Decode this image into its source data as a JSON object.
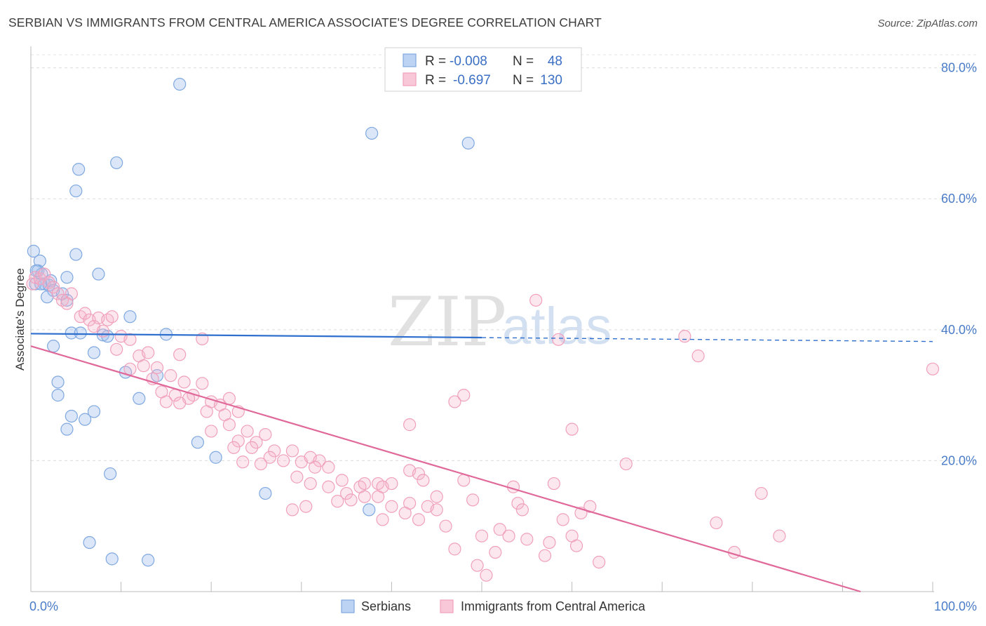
{
  "title": "SERBIAN VS IMMIGRANTS FROM CENTRAL AMERICA ASSOCIATE'S DEGREE CORRELATION CHART",
  "source": "Source: ZipAtlas.com",
  "watermark": {
    "zip": "ZIP",
    "atlas": "atlas"
  },
  "chart_data": {
    "type": "scatter",
    "xlabel": "",
    "ylabel": "Associate's Degree",
    "xlim": [
      0,
      100
    ],
    "ylim": [
      0,
      82
    ],
    "x_tick_labels": [
      {
        "value": 0,
        "label": "0.0%"
      },
      {
        "value": 100,
        "label": "100.0%"
      }
    ],
    "y_tick_labels": [
      {
        "value": 20,
        "label": "20.0%"
      },
      {
        "value": 40,
        "label": "40.0%"
      },
      {
        "value": 60,
        "label": "60.0%"
      },
      {
        "value": 80,
        "label": "80.0%"
      }
    ],
    "x_minor_ticks": [
      10,
      20,
      30,
      40,
      50,
      60,
      70,
      80,
      90,
      100
    ],
    "grid": "horizontal dashed",
    "legend_position": "top-center",
    "colors": {
      "serbians": "#7fa8e0",
      "serbians_line": "#2f6fce",
      "immigrants": "#f0a0bc",
      "immigrants_line": "#e0699a",
      "tick": "#4a7cc7"
    },
    "stats": [
      {
        "r_label": "R =",
        "r": "-0.008",
        "n_label": "N =",
        "n": "48"
      },
      {
        "r_label": "R =",
        "r": "-0.697",
        "n_label": "N =",
        "n": "130"
      }
    ],
    "series": [
      {
        "name": "Serbians",
        "trend": {
          "x": [
            0,
            50
          ],
          "y": [
            39.4,
            38.8
          ],
          "dashed_to_x": 100,
          "dashed_y_end": 38.2
        },
        "points": [
          [
            0.3,
            52
          ],
          [
            1,
            50.5
          ],
          [
            0.8,
            49
          ],
          [
            1.2,
            48.5
          ],
          [
            1.5,
            47
          ],
          [
            2,
            46.8
          ],
          [
            2.2,
            47.5
          ],
          [
            2.5,
            46
          ],
          [
            3.5,
            45.5
          ],
          [
            1.8,
            45
          ],
          [
            4,
            44.5
          ],
          [
            4,
            48
          ],
          [
            5,
            51.5
          ],
          [
            7.5,
            48.5
          ],
          [
            4.5,
            39.5
          ],
          [
            5.5,
            39.5
          ],
          [
            8,
            39.2
          ],
          [
            8.5,
            39
          ],
          [
            11,
            42
          ],
          [
            15,
            39.3
          ],
          [
            2.5,
            37.5
          ],
          [
            7,
            36.5
          ],
          [
            10.5,
            33.5
          ],
          [
            14,
            33
          ],
          [
            3,
            32
          ],
          [
            3,
            30
          ],
          [
            12,
            29.5
          ],
          [
            4.5,
            26.8
          ],
          [
            7,
            27.5
          ],
          [
            6,
            26.3
          ],
          [
            4,
            24.8
          ],
          [
            18.5,
            22.8
          ],
          [
            20.5,
            20.5
          ],
          [
            8.8,
            18
          ],
          [
            26,
            15
          ],
          [
            37.5,
            12.5
          ],
          [
            6.5,
            7.5
          ],
          [
            9,
            5
          ],
          [
            13,
            4.8
          ],
          [
            16.5,
            77.5
          ],
          [
            37.8,
            70
          ],
          [
            48.5,
            68.5
          ],
          [
            9.5,
            65.5
          ],
          [
            5.3,
            64.5
          ],
          [
            5,
            61.2
          ],
          [
            0.5,
            47
          ],
          [
            1.1,
            47
          ],
          [
            0.6,
            49
          ]
        ]
      },
      {
        "name": "Immigrants from Central America",
        "trend": {
          "x": [
            0,
            92
          ],
          "y": [
            37.5,
            0
          ]
        },
        "points": [
          [
            0.2,
            47
          ],
          [
            0.5,
            48
          ],
          [
            1,
            47.8
          ],
          [
            1.5,
            48.5
          ],
          [
            2,
            47.2
          ],
          [
            2.5,
            46.5
          ],
          [
            3,
            45.5
          ],
          [
            4.5,
            45.5
          ],
          [
            3.5,
            44.5
          ],
          [
            4,
            44
          ],
          [
            5.5,
            42
          ],
          [
            6,
            42.5
          ],
          [
            6.5,
            41.5
          ],
          [
            7.5,
            41.8
          ],
          [
            8.5,
            41.5
          ],
          [
            9,
            42
          ],
          [
            7,
            40.5
          ],
          [
            8,
            39.8
          ],
          [
            10,
            39
          ],
          [
            11,
            38.5
          ],
          [
            19,
            38.6
          ],
          [
            9.5,
            37
          ],
          [
            12,
            36
          ],
          [
            13,
            36.5
          ],
          [
            16.5,
            36.2
          ],
          [
            12.5,
            34.5
          ],
          [
            14,
            34.2
          ],
          [
            11,
            34
          ],
          [
            13.5,
            32.5
          ],
          [
            15.5,
            33
          ],
          [
            17,
            32
          ],
          [
            19,
            31.8
          ],
          [
            14.5,
            30.5
          ],
          [
            16,
            30
          ],
          [
            18,
            30
          ],
          [
            17.5,
            29.5
          ],
          [
            15,
            29
          ],
          [
            16.5,
            28.8
          ],
          [
            20,
            29
          ],
          [
            21,
            28.5
          ],
          [
            22,
            29.5
          ],
          [
            19.5,
            27.5
          ],
          [
            21.5,
            27
          ],
          [
            23,
            27.5
          ],
          [
            22,
            25.5
          ],
          [
            20,
            24.5
          ],
          [
            24,
            24.5
          ],
          [
            26,
            24
          ],
          [
            23,
            23
          ],
          [
            25,
            22.8
          ],
          [
            22.5,
            22
          ],
          [
            24.5,
            22
          ],
          [
            27,
            21.5
          ],
          [
            29,
            21.5
          ],
          [
            26.5,
            20.5
          ],
          [
            28,
            20
          ],
          [
            30,
            19.8
          ],
          [
            23.5,
            19.8
          ],
          [
            25.5,
            19.5
          ],
          [
            31,
            20.5
          ],
          [
            32,
            20
          ],
          [
            33,
            19
          ],
          [
            31.5,
            19
          ],
          [
            29.5,
            17.5
          ],
          [
            31,
            16.5
          ],
          [
            33,
            16
          ],
          [
            34.5,
            17
          ],
          [
            36.5,
            16
          ],
          [
            37,
            16.5
          ],
          [
            38.5,
            16.5
          ],
          [
            39,
            16
          ],
          [
            40,
            16.5
          ],
          [
            35,
            15
          ],
          [
            37,
            14.5
          ],
          [
            38.5,
            14.5
          ],
          [
            34,
            13.8
          ],
          [
            35.5,
            14
          ],
          [
            40,
            13
          ],
          [
            42,
            13.5
          ],
          [
            44,
            13
          ],
          [
            41.5,
            12
          ],
          [
            43,
            11
          ],
          [
            29,
            12.5
          ],
          [
            30.5,
            13
          ],
          [
            39,
            11
          ],
          [
            45,
            12.5
          ],
          [
            46,
            10
          ],
          [
            45,
            14.5
          ],
          [
            42,
            18.5
          ],
          [
            43,
            18
          ],
          [
            43.5,
            17
          ],
          [
            48,
            17
          ],
          [
            49,
            14
          ],
          [
            50,
            8.5
          ],
          [
            52,
            9.5
          ],
          [
            53,
            8.5
          ],
          [
            51.5,
            6
          ],
          [
            54,
            13.5
          ],
          [
            54.5,
            12.5
          ],
          [
            55,
            8
          ],
          [
            57,
            5.5
          ],
          [
            57.5,
            7.5
          ],
          [
            60,
            8.5
          ],
          [
            60.5,
            7
          ],
          [
            59,
            11
          ],
          [
            61,
            12
          ],
          [
            62,
            13
          ],
          [
            53.5,
            16
          ],
          [
            58,
            16.5
          ],
          [
            47,
            6.5
          ],
          [
            49.5,
            4
          ],
          [
            50.5,
            2.5
          ],
          [
            63,
            4.5
          ],
          [
            66,
            19.5
          ],
          [
            81,
            15
          ],
          [
            76,
            10.5
          ],
          [
            83,
            8.5
          ],
          [
            78,
            6
          ],
          [
            42,
            25.5
          ],
          [
            47,
            29
          ],
          [
            48,
            30
          ],
          [
            58.5,
            38.5
          ],
          [
            60,
            24.8
          ],
          [
            56,
            44.5
          ],
          [
            72.5,
            39
          ],
          [
            74,
            36
          ],
          [
            100,
            34
          ]
        ]
      }
    ]
  },
  "bottom_legend": [
    {
      "label": "Serbians"
    },
    {
      "label": "Immigrants from Central America"
    }
  ]
}
